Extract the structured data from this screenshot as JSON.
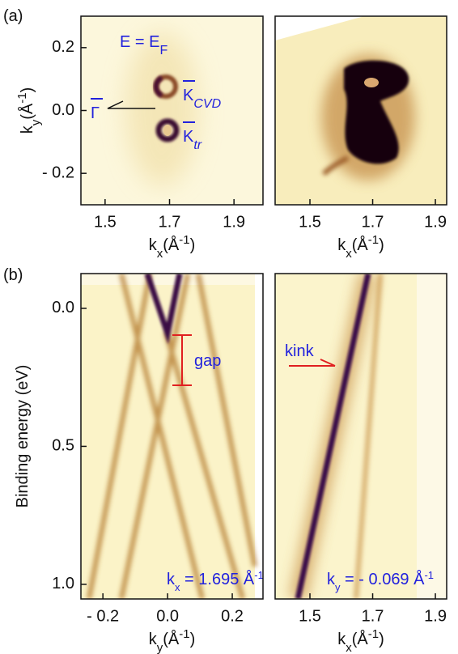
{
  "figure": {
    "panel_labels": [
      "(a)",
      "(b)"
    ]
  },
  "chart_data": [
    {
      "type": "image",
      "xlim": [
        1.425,
        1.99
      ],
      "ylim": [
        -0.3,
        0.3
      ],
      "xticks": [
        1.5,
        1.7,
        1.9
      ],
      "yticks": [
        0.2,
        {
          "value": 0,
          "label": "0.0"
        },
        {
          "value": -0.2,
          "label": "- 0.2"
        }
      ],
      "x_label": {
        "symbol": "k",
        "sub": "x",
        "unit": "(Å",
        "sup": "-1",
        "close": ")"
      },
      "y_label": {
        "symbol": "k",
        "sub": "y",
        "unit": "(Å",
        "sup": "-1",
        "close": ")"
      },
      "annotations": {
        "energy": {
          "text": "E = E",
          "sub": "F"
        },
        "gamma": "Γ",
        "k_cvd": {
          "text": "K",
          "sub": "CVD"
        },
        "k_tr": {
          "text": "K",
          "sub": "tr"
        }
      }
    },
    {
      "type": "image",
      "xlim": [
        1.389,
        1.936
      ],
      "ylim": [
        -0.3,
        0.3
      ],
      "xticks": [
        1.5,
        1.7,
        1.9
      ],
      "x_label": {
        "symbol": "k",
        "sub": "x",
        "unit": "(Å",
        "sup": "-1",
        "close": ")"
      }
    },
    {
      "type": "image",
      "xlim": [
        -0.268,
        0.295
      ],
      "ylim": [
        1.053,
        -0.126
      ],
      "xticks": [
        {
          "value": -0.2,
          "label": "- 0.2"
        },
        {
          "value": 0,
          "label": "0.0"
        },
        0.2
      ],
      "yticks": [
        {
          "value": 0,
          "label": "0.0"
        },
        0.5,
        {
          "value": 1,
          "label": "1.0"
        }
      ],
      "x_label": {
        "symbol": "k",
        "sub": "y",
        "unit": "(Å",
        "sup": "-1",
        "close": ")"
      },
      "y_label": "Binding  energy (eV)",
      "annotations": {
        "gap": "gap",
        "momentum": {
          "symbol": "k",
          "sub": "x",
          "text": " = 1.695 Å",
          "sup": "-1"
        }
      }
    },
    {
      "type": "image",
      "xlim": [
        1.389,
        1.936
      ],
      "ylim": [
        1.053,
        -0.126
      ],
      "xticks": [
        1.5,
        1.7,
        1.9
      ],
      "x_label": {
        "symbol": "k",
        "sub": "x",
        "unit": "(Å",
        "sup": "-1",
        "close": ")"
      },
      "annotations": {
        "kink": "kink",
        "momentum": {
          "symbol": "k",
          "sub": "y",
          "text": " = - 0.069 Å",
          "sup": "-1"
        }
      }
    }
  ]
}
